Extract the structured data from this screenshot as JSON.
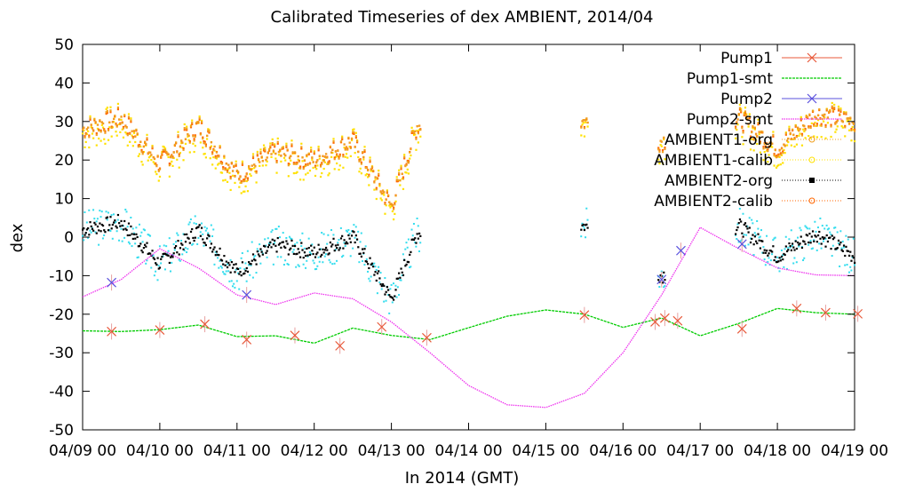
{
  "chart_data": {
    "type": "line",
    "title": "Calibrated Timeseries of dex AMBIENT, 2014/04",
    "xlabel": "In 2014 (GMT)",
    "ylabel": "dex",
    "xlim": [
      "04/09 00",
      "04/19 00"
    ],
    "ylim": [
      -50,
      50
    ],
    "x_ticks": [
      "04/09 00",
      "04/10 00",
      "04/11 00",
      "04/12 00",
      "04/13 00",
      "04/14 00",
      "04/15 00",
      "04/16 00",
      "04/17 00",
      "04/18 00",
      "04/19 00"
    ],
    "y_ticks": [
      -50,
      -40,
      -30,
      -20,
      -10,
      0,
      10,
      20,
      30,
      40,
      50
    ],
    "grid": false,
    "legend_position": "top-right",
    "colors": {
      "Pump1": "#e8593a",
      "Pump1-smt": "#00cc00",
      "Pump2": "#5a50dd",
      "Pump2-smt": "#ee33ee",
      "AMBIENT1-org": "#f0a020",
      "AMBIENT1-calib": "#ffe100",
      "AMBIENT2-org": "#000000",
      "AMBIENT2-calib": "#ff6600",
      "AMBIENT2-cyan": "#33ddee"
    },
    "series": [
      {
        "name": "Pump1",
        "marker": "x",
        "x": [
          "2014-04-09 09:00",
          "2014-04-10 00:00",
          "2014-04-10 14:00",
          "2014-04-11 03:00",
          "2014-04-11 18:00",
          "2014-04-12 08:00",
          "2014-04-12 21:00",
          "2014-04-13 11:00",
          "2014-04-15 12:00",
          "2014-04-16 10:00",
          "2014-04-16 13:00",
          "2014-04-16 17:00",
          "2014-04-17 13:00",
          "2014-04-18 06:00",
          "2014-04-18 15:00",
          "2014-04-19 01:00"
        ],
        "y": [
          -24.5,
          -24.1,
          -22.6,
          -26.6,
          -25.5,
          -28.2,
          -23.3,
          -26.1,
          -20.2,
          -22.0,
          -21.0,
          -21.7,
          -23.8,
          -18.5,
          -19.6,
          -19.9
        ]
      },
      {
        "name": "Pump1-smt",
        "x": [
          "2014-04-09 00:00",
          "2014-04-09 12:00",
          "2014-04-10 00:00",
          "2014-04-10 12:00",
          "2014-04-11 00:00",
          "2014-04-11 12:00",
          "2014-04-12 00:00",
          "2014-04-12 12:00",
          "2014-04-13 00:00",
          "2014-04-13 12:00",
          "2014-04-14 00:00",
          "2014-04-14 12:00",
          "2014-04-15 00:00",
          "2014-04-15 12:00",
          "2014-04-16 00:00",
          "2014-04-16 12:00",
          "2014-04-17 00:00",
          "2014-04-17 12:00",
          "2014-04-18 00:00",
          "2014-04-18 12:00",
          "2014-04-19 00:00"
        ],
        "y": [
          -24.3,
          -24.5,
          -24.0,
          -22.8,
          -25.8,
          -25.6,
          -27.5,
          -23.6,
          -25.5,
          -26.6,
          -23.5,
          -20.5,
          -18.9,
          -20.0,
          -23.4,
          -21.0,
          -25.6,
          -22.4,
          -18.5,
          -19.6,
          -20.0
        ]
      },
      {
        "name": "Pump2",
        "marker": "x",
        "x": [
          "2014-04-09 09:00",
          "2014-04-11 03:00",
          "2014-04-16 12:00",
          "2014-04-16 18:00",
          "2014-04-17 13:00"
        ],
        "y": [
          -11.8,
          -15.0,
          -11.0,
          -3.5,
          -1.8
        ]
      },
      {
        "name": "Pump2-smt",
        "x": [
          "2014-04-09 00:00",
          "2014-04-09 12:00",
          "2014-04-10 00:00",
          "2014-04-10 12:00",
          "2014-04-11 00:00",
          "2014-04-11 12:00",
          "2014-04-12 00:00",
          "2014-04-12 12:00",
          "2014-04-13 00:00",
          "2014-04-13 12:00",
          "2014-04-14 00:00",
          "2014-04-14 12:00",
          "2014-04-15 00:00",
          "2014-04-15 12:00",
          "2014-04-16 00:00",
          "2014-04-16 12:00",
          "2014-04-17 00:00",
          "2014-04-17 12:00",
          "2014-04-18 00:00",
          "2014-04-18 12:00",
          "2014-04-19 00:00"
        ],
        "y": [
          -15.5,
          -11.0,
          -3.0,
          -8.0,
          -15.0,
          -17.5,
          -14.5,
          -16.0,
          -22.0,
          -30.0,
          -38.5,
          -43.5,
          -44.2,
          -40.5,
          -30.0,
          -15.0,
          2.5,
          -3.0,
          -8.0,
          -9.8,
          -10.0
        ]
      },
      {
        "name": "AMBIENT1-org",
        "x": [
          "2014-04-09 00:00",
          "2014-04-09 12:00",
          "2014-04-10 00:00",
          "2014-04-10 12:00",
          "2014-04-11 00:00",
          "2014-04-11 12:00",
          "2014-04-12 00:00",
          "2014-04-12 12:00",
          "2014-04-13 00:00",
          "2014-04-13 08:00",
          "2014-04-15 12:00",
          "2014-04-16 12:00",
          "2014-04-17 12:00",
          "2014-04-18 00:00",
          "2014-04-18 12:00",
          "2014-04-19 00:00"
        ],
        "y": [
          28.0,
          31.0,
          19.0,
          29.0,
          16.0,
          22.0,
          20.0,
          25.0,
          8.0,
          29.0,
          30.0,
          25.0,
          31.0,
          23.0,
          32.0,
          30.0
        ]
      },
      {
        "name": "AMBIENT1-calib",
        "x": [
          "2014-04-09 00:00",
          "2014-04-09 12:00",
          "2014-04-10 00:00",
          "2014-04-10 12:00",
          "2014-04-11 00:00",
          "2014-04-11 12:00",
          "2014-04-12 00:00",
          "2014-04-12 12:00",
          "2014-04-13 00:00",
          "2014-04-13 08:00",
          "2014-04-15 12:00",
          "2014-04-16 12:00",
          "2014-04-17 12:00",
          "2014-04-18 00:00",
          "2014-04-18 12:00",
          "2014-04-19 00:00"
        ],
        "y": [
          27.0,
          30.0,
          18.0,
          28.0,
          15.0,
          21.0,
          19.0,
          24.0,
          7.0,
          28.0,
          29.0,
          24.0,
          30.0,
          22.0,
          31.0,
          29.0
        ]
      },
      {
        "name": "AMBIENT2-org",
        "x": [
          "2014-04-09 00:00",
          "2014-04-09 12:00",
          "2014-04-10 00:00",
          "2014-04-10 12:00",
          "2014-04-11 00:00",
          "2014-04-11 12:00",
          "2014-04-12 00:00",
          "2014-04-12 12:00",
          "2014-04-13 00:00",
          "2014-04-13 08:00",
          "2014-04-15 12:00",
          "2014-04-16 12:00",
          "2014-04-17 12:00",
          "2014-04-18 00:00",
          "2014-04-18 12:00",
          "2014-04-19 00:00"
        ],
        "y": [
          2.0,
          4.0,
          -7.0,
          2.0,
          -9.0,
          -2.0,
          -4.0,
          0.0,
          -16.0,
          1.0,
          3.0,
          -10.0,
          3.0,
          -5.0,
          1.0,
          -5.0
        ]
      },
      {
        "name": "AMBIENT2-calib",
        "x": [
          "2014-04-09 00:00",
          "2014-04-09 12:00",
          "2014-04-10 00:00",
          "2014-04-10 12:00",
          "2014-04-11 00:00",
          "2014-04-11 12:00",
          "2014-04-12 00:00",
          "2014-04-12 12:00",
          "2014-04-13 00:00",
          "2014-04-13 08:00",
          "2014-04-15 12:00",
          "2014-04-16 12:00",
          "2014-04-17 12:00",
          "2014-04-18 00:00",
          "2014-04-18 12:00",
          "2014-04-19 00:00"
        ],
        "y": [
          28.0,
          31.0,
          19.0,
          29.0,
          16.0,
          22.0,
          20.0,
          25.0,
          8.0,
          29.0,
          30.0,
          25.0,
          31.0,
          23.0,
          32.0,
          30.0
        ]
      }
    ]
  }
}
